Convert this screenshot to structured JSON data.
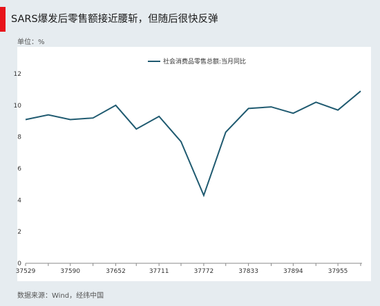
{
  "header": {
    "title": "SARS爆发后零售额接近腰斩，但随后很快反弹",
    "unit": "单位：%",
    "source": "数据来源：Wind，经纬中国"
  },
  "colors": {
    "accent": "#e8141b",
    "line": "#1f5a70",
    "background": "#e6ecf0",
    "plot": "#ffffff"
  },
  "chart_data": {
    "type": "line",
    "title": "",
    "xlabel": "",
    "ylabel": "",
    "ylim": [
      0,
      12
    ],
    "yticks": [
      0,
      2,
      4,
      6,
      8,
      10,
      12
    ],
    "xtick_labels": [
      "37529",
      "37590",
      "37652",
      "37711",
      "37772",
      "37833",
      "37894",
      "37955"
    ],
    "grid": false,
    "legend_position": "top-center",
    "series": [
      {
        "name": "社会消费品零售总额:当月同比",
        "x": [
          37529,
          37560,
          37590,
          37621,
          37652,
          37680,
          37711,
          37741,
          37772,
          37802,
          37833,
          37864,
          37894,
          37925,
          37955,
          37986
        ],
        "values": [
          9.1,
          9.4,
          9.1,
          9.2,
          10.0,
          8.5,
          9.3,
          7.7,
          4.3,
          8.3,
          9.8,
          9.9,
          9.5,
          10.2,
          9.7,
          10.9
        ]
      }
    ]
  }
}
